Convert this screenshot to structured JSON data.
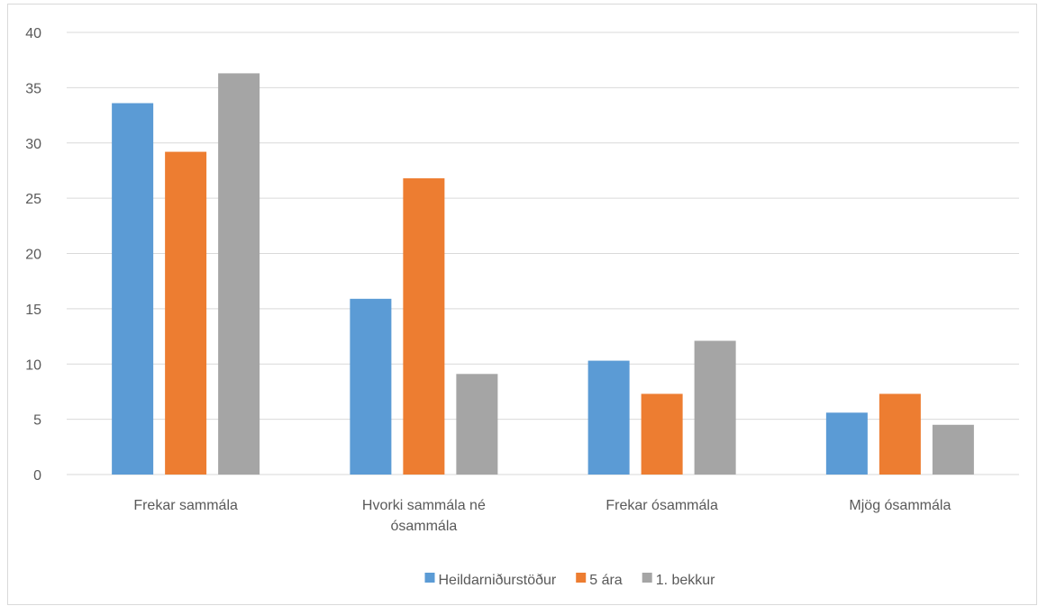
{
  "chart_data": {
    "type": "bar",
    "title": "",
    "xlabel": "",
    "ylabel": "",
    "categories": [
      [
        "Frekar sammála"
      ],
      [
        "Hvorki sammála né",
        "ósammála"
      ],
      [
        "Frekar ósammála"
      ],
      [
        "Mjög ósammála"
      ]
    ],
    "series": [
      {
        "name": "Heildarniðurstöður",
        "color": "#5b9bd5",
        "values": [
          33.6,
          15.9,
          10.3,
          5.6
        ]
      },
      {
        "name": "5 ára",
        "color": "#ed7d31",
        "values": [
          29.2,
          26.8,
          7.3,
          7.3
        ]
      },
      {
        "name": "1. bekkur",
        "color": "#a5a5a5",
        "values": [
          36.3,
          9.1,
          12.1,
          4.5
        ]
      }
    ],
    "ylim": [
      0,
      40
    ],
    "yticks": [
      0,
      5,
      10,
      15,
      20,
      25,
      30,
      35,
      40
    ],
    "grid": true,
    "legend_position": "bottom",
    "gridline_color": "#d9d9d9",
    "text_color": "#595959"
  }
}
